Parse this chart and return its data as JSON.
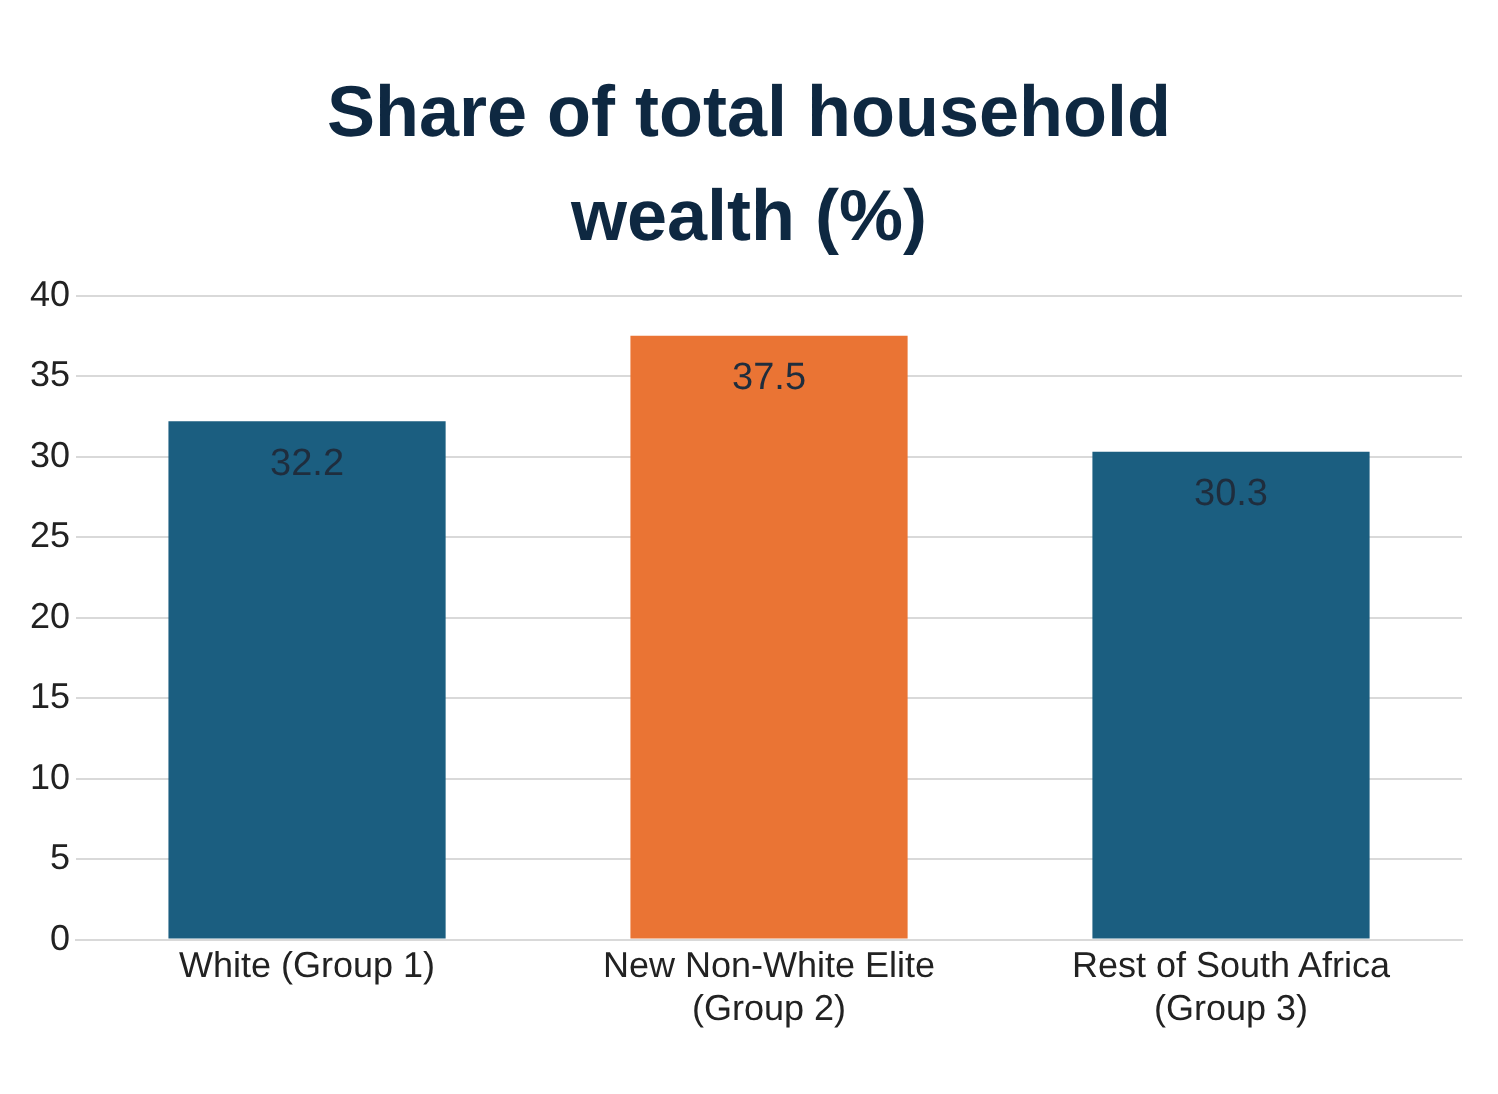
{
  "chart_data": {
    "type": "bar",
    "title": "Share of total household wealth (%)",
    "categories": [
      "White (Group 1)",
      "New Non-White Elite (Group 2)",
      "Rest of South Africa (Group 3)"
    ],
    "values": [
      32.2,
      37.5,
      30.3
    ],
    "colors": [
      "#1b5e80",
      "#ea7434",
      "#1b5e80"
    ],
    "ylim": [
      0,
      40
    ],
    "yticks": [
      0,
      5,
      10,
      15,
      20,
      25,
      30,
      35,
      40
    ],
    "grid": "y",
    "data_labels": true,
    "legend": false
  }
}
